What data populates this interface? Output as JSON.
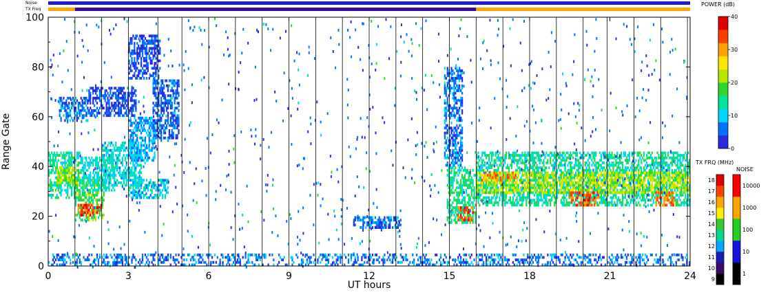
{
  "chart_data": {
    "type": "heatmap",
    "xlabel": "UT hours",
    "ylabel": "Range Gate",
    "xlim": [
      0,
      24
    ],
    "ylim": [
      0,
      100
    ],
    "x_ticks": [
      "0",
      "3",
      "6",
      "9",
      "12",
      "15",
      "18",
      "21",
      "24"
    ],
    "y_ticks": [
      "0",
      "20",
      "40",
      "60",
      "80",
      "100"
    ],
    "scan_boundaries_ut": [
      1.0,
      2.0,
      3.0,
      4.1,
      5.0,
      6.0,
      7.0,
      8.0,
      9.0,
      10.0,
      11.0,
      12.0,
      13.0,
      14.0,
      15.0,
      16.0,
      17.0,
      18.0,
      19.0,
      20.0,
      20.9,
      21.9,
      22.9,
      23.9
    ],
    "status_bars": {
      "noise_label": "Noise",
      "txfreq_label": "TX Freq",
      "noise_segments": [
        {
          "start": 0.0,
          "end": 24.0,
          "color": "#1b1bd6"
        }
      ],
      "txfreq_segments": [
        {
          "start": 0.0,
          "end": 1.0,
          "color": "#ffa500"
        },
        {
          "start": 1.0,
          "end": 16.0,
          "color": "#3a0a9a"
        },
        {
          "start": 16.0,
          "end": 24.0,
          "color": "#ffa500"
        }
      ]
    },
    "regions": [
      {
        "x0": 0.0,
        "x1": 1.2,
        "y0": 27,
        "y1": 46,
        "power": 14
      },
      {
        "x0": 0.3,
        "x1": 1.0,
        "y0": 33,
        "y1": 40,
        "power": 22
      },
      {
        "x0": 1.0,
        "x1": 2.1,
        "y0": 18,
        "y1": 36,
        "power": 18
      },
      {
        "x0": 1.1,
        "x1": 2.0,
        "y0": 20,
        "y1": 25,
        "power": 34
      },
      {
        "x0": 1.2,
        "x1": 2.5,
        "y0": 30,
        "y1": 44,
        "power": 12
      },
      {
        "x0": 2.0,
        "x1": 3.5,
        "y0": 32,
        "y1": 50,
        "power": 11
      },
      {
        "x0": 3.0,
        "x1": 4.0,
        "y0": 42,
        "y1": 60,
        "power": 8
      },
      {
        "x0": 3.9,
        "x1": 4.9,
        "y0": 50,
        "y1": 75,
        "power": 5
      },
      {
        "x0": 3.0,
        "x1": 4.5,
        "y0": 27,
        "y1": 35,
        "power": 10
      },
      {
        "x0": 0.4,
        "x1": 1.5,
        "y0": 58,
        "y1": 68,
        "power": 6
      },
      {
        "x0": 1.5,
        "x1": 3.3,
        "y0": 60,
        "y1": 72,
        "power": 4
      },
      {
        "x0": 3.0,
        "x1": 4.2,
        "y0": 75,
        "y1": 93,
        "power": 4
      },
      {
        "x0": 11.4,
        "x1": 13.2,
        "y0": 15,
        "y1": 20,
        "power": 6
      },
      {
        "x0": 14.9,
        "x1": 16.0,
        "y0": 17,
        "y1": 40,
        "power": 15
      },
      {
        "x0": 15.3,
        "x1": 15.9,
        "y0": 18,
        "y1": 24,
        "power": 34
      },
      {
        "x0": 14.8,
        "x1": 15.5,
        "y0": 40,
        "y1": 80,
        "power": 6
      },
      {
        "x0": 16.0,
        "x1": 24.0,
        "y0": 24,
        "y1": 46,
        "power": 14
      },
      {
        "x0": 16.0,
        "x1": 24.0,
        "y0": 29,
        "y1": 38,
        "power": 22
      },
      {
        "x0": 19.5,
        "x1": 20.6,
        "y0": 24,
        "y1": 30,
        "power": 33
      },
      {
        "x0": 22.7,
        "x1": 23.4,
        "y0": 24,
        "y1": 30,
        "power": 32
      },
      {
        "x0": 16.2,
        "x1": 17.5,
        "y0": 34,
        "y1": 38,
        "power": 30
      },
      {
        "x0": 0.0,
        "x1": 24.0,
        "y0": 0,
        "y1": 5,
        "power": 6
      }
    ],
    "power_scale": {
      "title": "POWER (dB)",
      "ticks": [
        "0",
        "10",
        "20",
        "30",
        "40"
      ],
      "range": [
        0,
        40
      ],
      "colors": [
        "#2a2ae0",
        "#0073ff",
        "#00d5ff",
        "#00e39a",
        "#2fd62f",
        "#b6e600",
        "#ffe800",
        "#ffa000",
        "#ff3d00",
        "#e00000"
      ]
    },
    "txfreq_scale": {
      "title": "TX FRQ (MHz)",
      "ticks": [
        "9",
        "10",
        "11",
        "12",
        "13",
        "14",
        "15",
        "16",
        "17",
        "18"
      ],
      "colors": [
        "#000000",
        "#3a0a6a",
        "#1a1ab8",
        "#00a8ff",
        "#00d98c",
        "#33cc33",
        "#ffee00",
        "#ffa500",
        "#ff4400",
        "#e00000"
      ]
    },
    "noise_scale": {
      "title": "NOISE",
      "ticks": [
        "1",
        "10",
        "100",
        "1000",
        "10000"
      ],
      "colors": [
        "#000000",
        "#1414dc",
        "#20d020",
        "#ffa500",
        "#ff0000"
      ]
    }
  }
}
